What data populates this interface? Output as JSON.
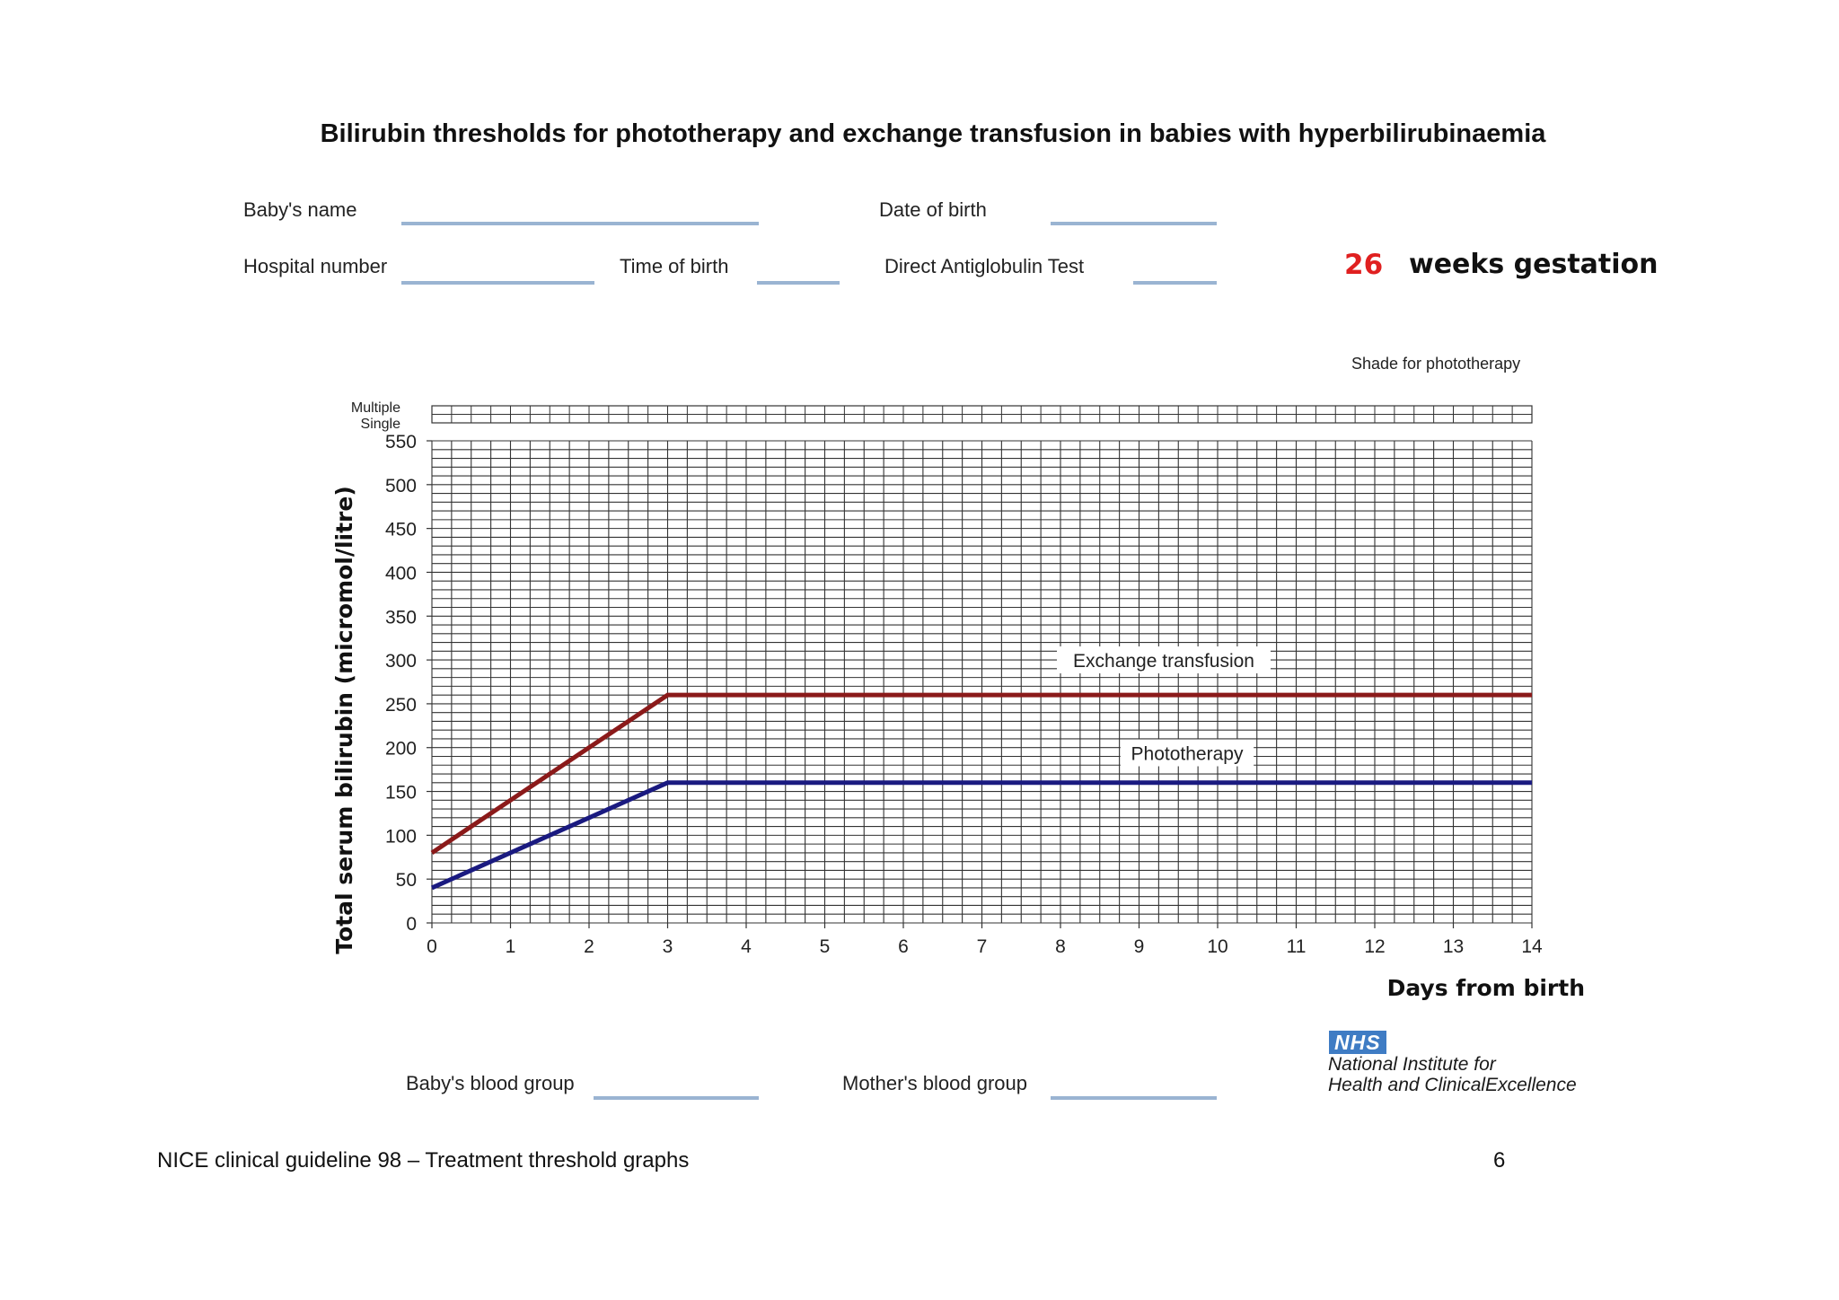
{
  "document": {
    "title": "Bilirubin thresholds for phototherapy and exchange transfusion in babies with hyperbilirubinaemia",
    "fields": {
      "babys_name": "Baby's name",
      "date_of_birth": "Date of birth",
      "hospital_number": "Hospital number",
      "time_of_birth": "Time of birth",
      "direct_antiglobulin_test": "Direct Antiglobulin Test",
      "babys_blood_group": "Baby's blood group",
      "mothers_blood_group": "Mother's blood group"
    },
    "gestation": {
      "weeks": "26",
      "label": "weeks gestation"
    },
    "shade_label": "Shade for phototherapy",
    "shade_rows": [
      "Multiple",
      "Single"
    ],
    "logo": {
      "badge": "NHS",
      "line1": "National Institute for",
      "line2": "Health and ClinicalExcellence"
    },
    "footer": {
      "left": "NICE clinical guideline 98 – Treatment threshold graphs",
      "page": "6"
    }
  },
  "colors": {
    "exchange": "#8b1a1a",
    "phototherapy": "#1a1a80",
    "underline": "#9ab4d2",
    "gestation_number": "#e02020"
  },
  "chart_data": {
    "type": "line",
    "title": "",
    "xlabel": "Days from birth",
    "ylabel": "Total serum bilirubin  (micromol/litre)",
    "xlim": [
      0,
      14
    ],
    "ylim": [
      0,
      550
    ],
    "x_ticks": [
      "0",
      "1",
      "2",
      "3",
      "4",
      "5",
      "6",
      "7",
      "8",
      "9",
      "10",
      "11",
      "12",
      "13",
      "14"
    ],
    "y_ticks": [
      "0",
      "50",
      "100",
      "150",
      "200",
      "250",
      "300",
      "350",
      "400",
      "450",
      "500",
      "550"
    ],
    "grid": true,
    "series": [
      {
        "name": "Exchange transfusion",
        "color": "#8b1a1a",
        "points": [
          [
            0,
            80
          ],
          [
            3,
            260
          ],
          [
            14,
            260
          ]
        ]
      },
      {
        "name": "Phototherapy",
        "color": "#1a1a80",
        "points": [
          [
            0,
            40
          ],
          [
            3,
            160
          ],
          [
            14,
            160
          ]
        ]
      }
    ]
  }
}
